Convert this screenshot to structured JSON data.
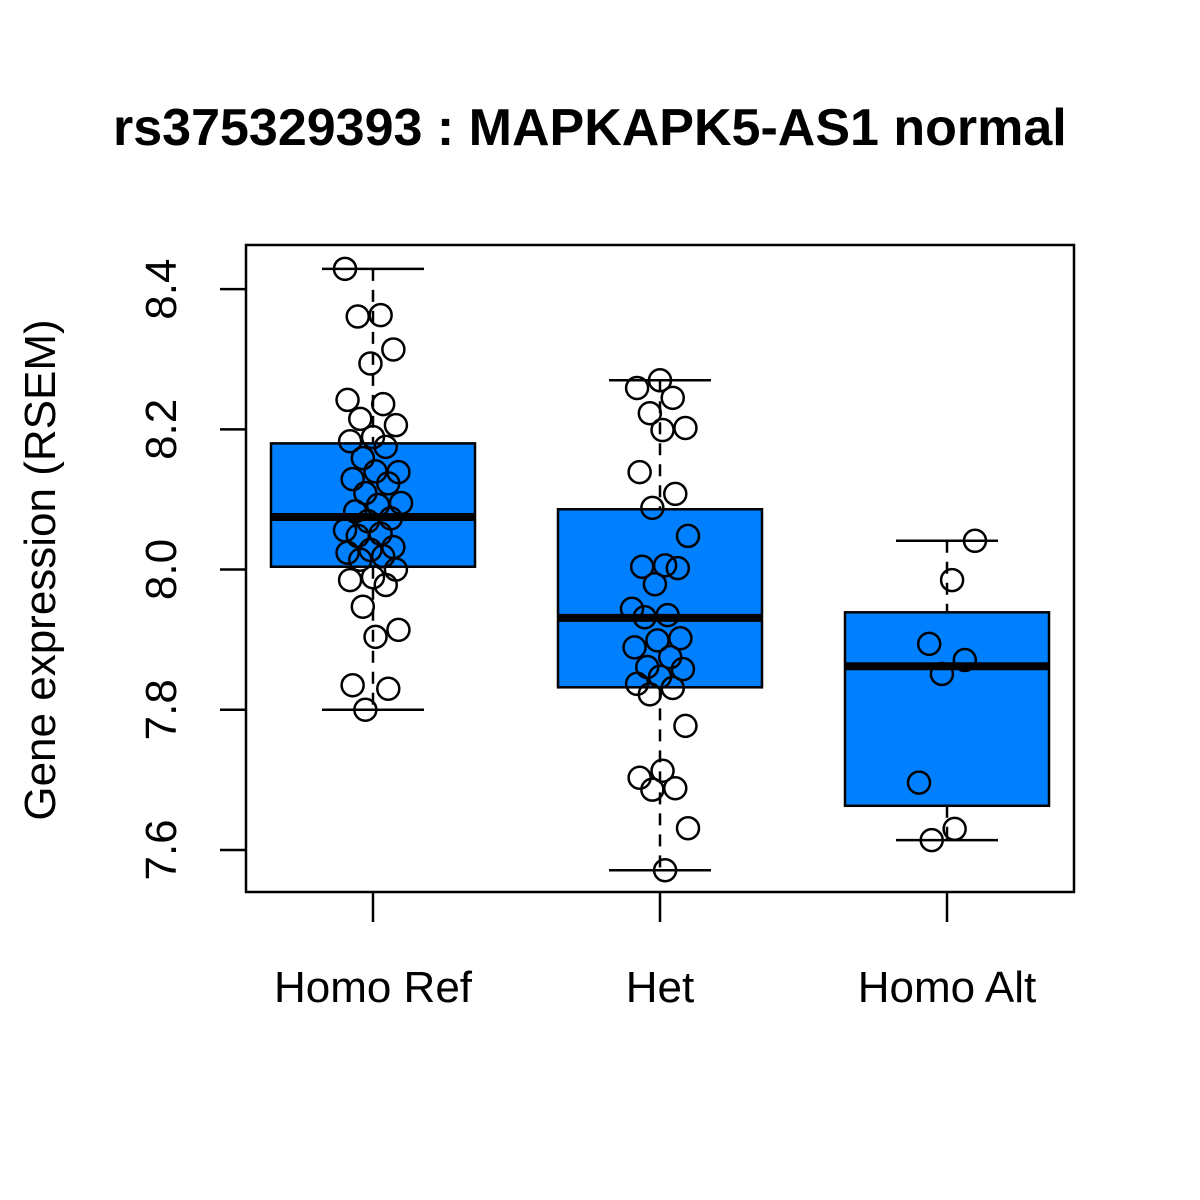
{
  "chart_data": {
    "type": "box",
    "title": "rs375329393 : MAPKAPK5-AS1 normal",
    "y_label": "Gene expression (RSEM)",
    "categories": [
      "Homo Ref",
      "Het",
      "Homo Alt"
    ],
    "color": "#0080ff",
    "ylim": [
      7.54,
      8.463
    ],
    "yticks": [
      7.6,
      7.8,
      {
        "value": 8,
        "label": "8.0"
      },
      8.2,
      8.4
    ],
    "series": [
      {
        "name": "Homo Ref",
        "whislo": 7.8,
        "q1": 8.004,
        "med": 8.075,
        "q3": 8.18,
        "whishi": 8.429,
        "points": [
          8.429,
          8.363,
          8.361,
          8.314,
          8.294,
          8.242,
          8.236,
          8.215,
          8.206,
          8.189,
          8.183,
          8.175,
          8.159,
          8.139,
          8.14,
          8.129,
          8.123,
          8.109,
          8.095,
          8.092,
          8.083,
          8.073,
          8.069,
          8.056,
          8.051,
          8.048,
          8.032,
          8.028,
          8.024,
          8.019,
          8.014,
          8.0,
          7.989,
          7.985,
          7.978,
          7.947,
          7.914,
          7.904,
          7.835,
          7.83,
          7.8
        ]
      },
      {
        "name": "Het",
        "whislo": 7.571,
        "q1": 7.832,
        "med": 7.931,
        "q3": 8.086,
        "whishi": 8.27,
        "points": [
          8.27,
          8.259,
          8.245,
          8.223,
          8.202,
          8.199,
          8.139,
          8.108,
          8.088,
          8.048,
          8.006,
          8.004,
          8.002,
          7.979,
          7.944,
          7.935,
          7.932,
          7.902,
          7.899,
          7.889,
          7.875,
          7.861,
          7.858,
          7.847,
          7.837,
          7.831,
          7.822,
          7.777,
          7.713,
          7.703,
          7.688,
          7.686,
          7.631,
          7.571
        ]
      },
      {
        "name": "Homo Alt",
        "whislo": 7.614,
        "q1": 7.663,
        "med": 7.862,
        "q3": 7.939,
        "whishi": 8.041,
        "points": [
          8.041,
          7.985,
          7.894,
          7.871,
          7.851,
          7.696,
          7.63,
          7.614
        ]
      }
    ]
  }
}
